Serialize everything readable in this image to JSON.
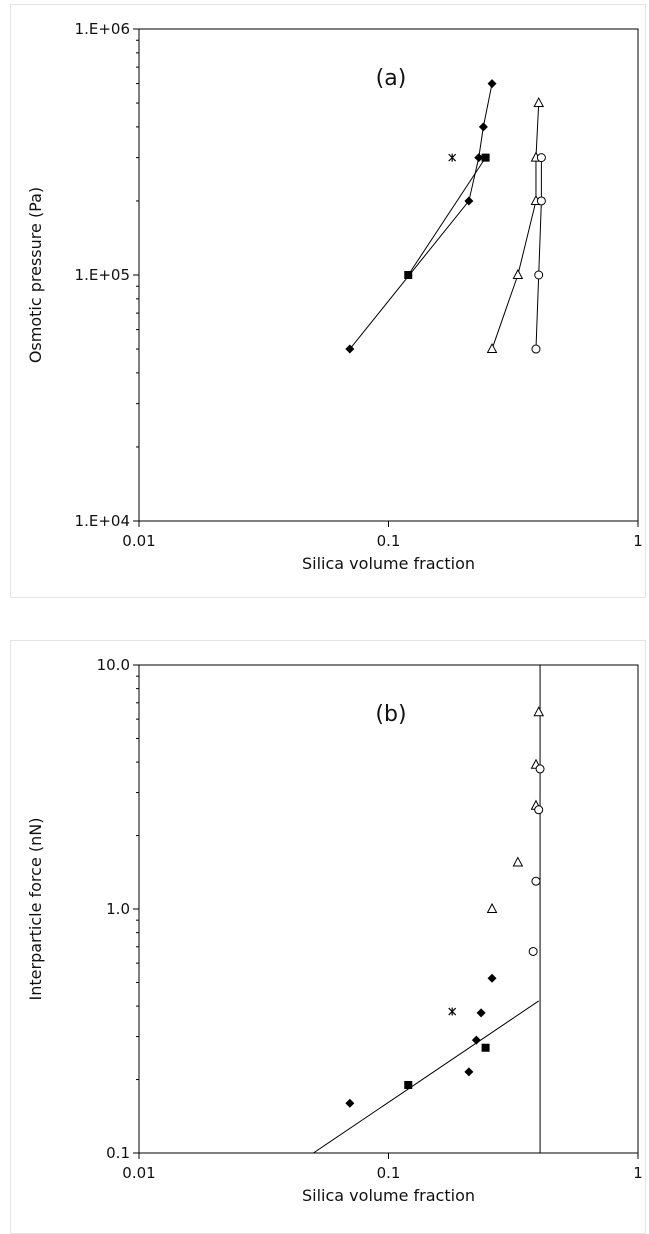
{
  "chart_data": [
    {
      "type": "scatter",
      "panel_label": "(a)",
      "xlabel": "Silica volume fraction",
      "ylabel": "Osmotic pressure (Pa)",
      "x_scale": "log",
      "y_scale": "log",
      "xlim": [
        0.01,
        1
      ],
      "ylim": [
        10000,
        1000000
      ],
      "x_ticks": [
        "0.01",
        "0.1",
        "1"
      ],
      "y_ticks": [
        "1.E+04",
        "1.E+05",
        "1.E+06"
      ],
      "grid": false,
      "series": [
        {
          "marker": "diamond",
          "connected": true,
          "points": [
            [
              0.07,
              50000
            ],
            [
              0.21,
              200000
            ],
            [
              0.23,
              300000
            ],
            [
              0.24,
              400000
            ],
            [
              0.26,
              600000
            ]
          ]
        },
        {
          "marker": "square",
          "connected": true,
          "points": [
            [
              0.12,
              100000
            ],
            [
              0.245,
              300000
            ]
          ]
        },
        {
          "marker": "star",
          "connected": false,
          "points": [
            [
              0.18,
              300000
            ]
          ]
        },
        {
          "marker": "triangle-open",
          "connected": true,
          "points": [
            [
              0.26,
              50000
            ],
            [
              0.33,
              100000
            ],
            [
              0.39,
              200000
            ],
            [
              0.39,
              300000
            ],
            [
              0.4,
              500000
            ]
          ]
        },
        {
          "marker": "circle-open",
          "connected": true,
          "points": [
            [
              0.39,
              50000
            ],
            [
              0.4,
              100000
            ],
            [
              0.41,
              200000
            ],
            [
              0.41,
              300000
            ]
          ]
        }
      ]
    },
    {
      "type": "scatter",
      "panel_label": "(b)",
      "xlabel": "Silica volume fraction",
      "ylabel": "Interparticle force (nN)",
      "x_scale": "log",
      "y_scale": "log",
      "xlim": [
        0.01,
        1
      ],
      "ylim": [
        0.1,
        10
      ],
      "x_ticks": [
        "0.01",
        "0.1",
        "1"
      ],
      "y_ticks": [
        "0.1",
        "1.0",
        "10.0"
      ],
      "grid": false,
      "series": [
        {
          "marker": "diamond",
          "points": [
            [
              0.07,
              0.16
            ],
            [
              0.21,
              0.215
            ],
            [
              0.225,
              0.29
            ],
            [
              0.235,
              0.375
            ],
            [
              0.26,
              0.52
            ]
          ]
        },
        {
          "marker": "square",
          "points": [
            [
              0.12,
              0.19
            ],
            [
              0.245,
              0.27
            ]
          ]
        },
        {
          "marker": "star",
          "points": [
            [
              0.18,
              0.38
            ]
          ]
        },
        {
          "marker": "triangle-open",
          "points": [
            [
              0.26,
              1.0
            ],
            [
              0.33,
              1.55
            ],
            [
              0.39,
              2.65
            ],
            [
              0.39,
              3.9
            ],
            [
              0.4,
              6.4
            ]
          ]
        },
        {
          "marker": "circle-open",
          "points": [
            [
              0.38,
              0.67
            ],
            [
              0.39,
              1.3
            ],
            [
              0.4,
              2.55
            ],
            [
              0.405,
              3.75
            ]
          ]
        }
      ],
      "lines": [
        {
          "kind": "fit",
          "points": [
            [
              0.05,
              0.1
            ],
            [
              0.4,
              0.42
            ]
          ]
        },
        {
          "kind": "vertical",
          "x": 0.405
        }
      ]
    }
  ]
}
